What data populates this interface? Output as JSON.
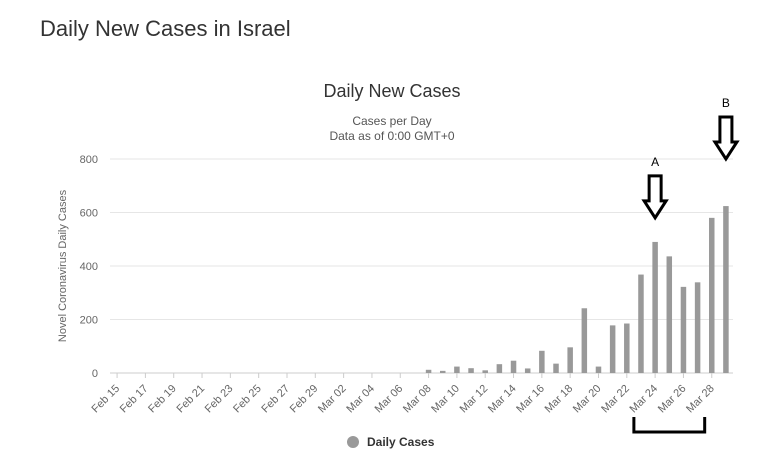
{
  "page": {
    "title": "Daily New Cases in Israel"
  },
  "chart_data": {
    "type": "bar",
    "title": "Daily New Cases",
    "subtitle_lines": [
      "Cases per Day",
      "Data as of 0:00 GMT+0"
    ],
    "ylabel": "Novel Coronavirus Daily Cases",
    "ylim": [
      0,
      800
    ],
    "yticks": [
      0,
      200,
      400,
      600,
      800
    ],
    "grid": true,
    "bar_color": "#999999",
    "categories": [
      "Feb 15",
      "Feb 16",
      "Feb 17",
      "Feb 18",
      "Feb 19",
      "Feb 20",
      "Feb 21",
      "Feb 22",
      "Feb 23",
      "Feb 24",
      "Feb 25",
      "Feb 26",
      "Feb 27",
      "Feb 28",
      "Feb 29",
      "Mar 01",
      "Mar 02",
      "Mar 03",
      "Mar 04",
      "Mar 05",
      "Mar 06",
      "Mar 07",
      "Mar 08",
      "Mar 09",
      "Mar 10",
      "Mar 11",
      "Mar 12",
      "Mar 13",
      "Mar 14",
      "Mar 15",
      "Mar 16",
      "Mar 17",
      "Mar 18",
      "Mar 19",
      "Mar 20",
      "Mar 21",
      "Mar 22",
      "Mar 23",
      "Mar 24",
      "Mar 25",
      "Mar 26",
      "Mar 27",
      "Mar 28",
      "Mar 29"
    ],
    "tick_labels": [
      "Feb 15",
      "Feb 17",
      "Feb 19",
      "Feb 21",
      "Feb 23",
      "Feb 25",
      "Feb 27",
      "Feb 29",
      "Mar 02",
      "Mar 04",
      "Mar 06",
      "Mar 08",
      "Mar 10",
      "Mar 12",
      "Mar 14",
      "Mar 16",
      "Mar 18",
      "Mar 20",
      "Mar 22",
      "Mar 24",
      "Mar 26",
      "Mar 28"
    ],
    "series": [
      {
        "name": "Daily Cases",
        "values": [
          0,
          0,
          0,
          0,
          0,
          0,
          0,
          0,
          0,
          0,
          0,
          0,
          0,
          0,
          0,
          0,
          0,
          0,
          0,
          0,
          0,
          0,
          12,
          8,
          24,
          18,
          10,
          33,
          46,
          17,
          83,
          35,
          96,
          242,
          24,
          178,
          185,
          368,
          490,
          436,
          322,
          339,
          580,
          624
        ]
      }
    ],
    "legend": {
      "position": "bottom-center",
      "label": "Daily Cases"
    },
    "annotations": {
      "arrow_a": {
        "label": "A",
        "points_to": "Mar 24",
        "value": 580
      },
      "arrow_b": {
        "label": "B",
        "points_to": "Mar 29",
        "value": 800
      },
      "bracket": {
        "from": "Mar 23",
        "to": "Mar 27"
      }
    }
  }
}
